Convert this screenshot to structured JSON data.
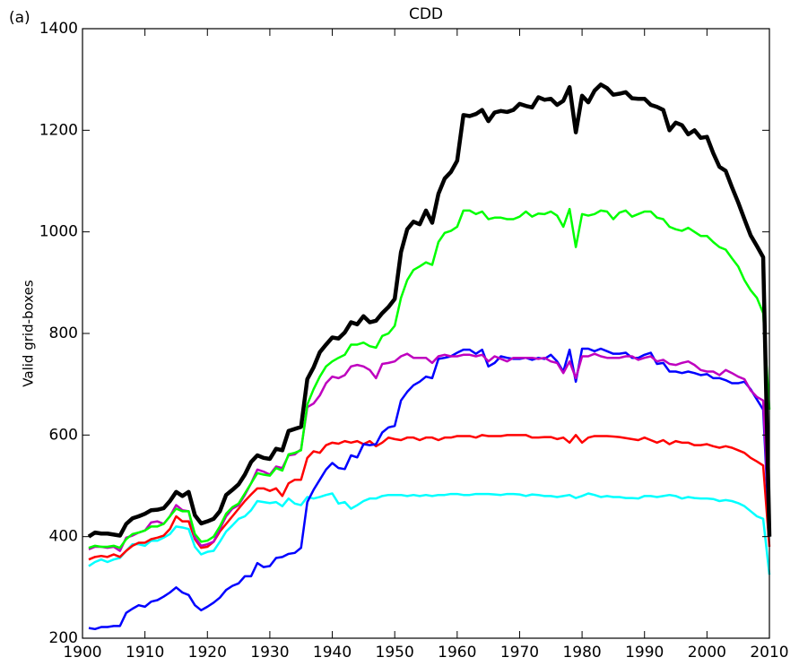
{
  "chart_data": {
    "type": "line",
    "title": "CDD",
    "panel_label": "(a)",
    "y_label": "Valid grid-boxes",
    "x": [
      1901,
      1902,
      1903,
      1904,
      1905,
      1906,
      1907,
      1908,
      1909,
      1910,
      1911,
      1912,
      1913,
      1914,
      1915,
      1916,
      1917,
      1918,
      1919,
      1920,
      1921,
      1922,
      1923,
      1924,
      1925,
      1926,
      1927,
      1928,
      1929,
      1930,
      1931,
      1932,
      1933,
      1934,
      1935,
      1936,
      1937,
      1938,
      1939,
      1940,
      1941,
      1942,
      1943,
      1944,
      1945,
      1946,
      1947,
      1948,
      1949,
      1950,
      1951,
      1952,
      1953,
      1954,
      1955,
      1956,
      1957,
      1958,
      1959,
      1960,
      1961,
      1962,
      1963,
      1964,
      1965,
      1966,
      1967,
      1968,
      1969,
      1970,
      1971,
      1972,
      1973,
      1974,
      1975,
      1976,
      1977,
      1978,
      1979,
      1980,
      1981,
      1982,
      1983,
      1984,
      1985,
      1986,
      1987,
      1988,
      1989,
      1990,
      1991,
      1992,
      1993,
      1994,
      1995,
      1996,
      1997,
      1998,
      1999,
      2000,
      2001,
      2002,
      2003,
      2004,
      2005,
      2006,
      2007,
      2008,
      2009,
      2010
    ],
    "series": [
      {
        "color": "#00ffff",
        "width": 2.5,
        "values": [
          342,
          350,
          355,
          350,
          355,
          358,
          372,
          385,
          385,
          382,
          392,
          392,
          398,
          405,
          420,
          418,
          415,
          380,
          365,
          370,
          372,
          390,
          410,
          422,
          435,
          440,
          452,
          470,
          468,
          466,
          468,
          460,
          475,
          465,
          462,
          478,
          475,
          478,
          482,
          485,
          465,
          468,
          455,
          462,
          470,
          475,
          475,
          480,
          482,
          482,
          482,
          480,
          482,
          480,
          482,
          480,
          482,
          482,
          484,
          484,
          482,
          482,
          484,
          484,
          484,
          483,
          482,
          484,
          484,
          483,
          480,
          483,
          482,
          480,
          480,
          478,
          480,
          482,
          476,
          480,
          485,
          482,
          478,
          480,
          478,
          478,
          476,
          476,
          475,
          480,
          480,
          478,
          480,
          482,
          480,
          475,
          478,
          476,
          475,
          475,
          474,
          470,
          472,
          470,
          466,
          460,
          450,
          440,
          435,
          325
        ]
      },
      {
        "color": "#ff0000",
        "width": 2.5,
        "values": [
          355,
          360,
          362,
          360,
          365,
          360,
          372,
          382,
          388,
          388,
          395,
          398,
          402,
          415,
          440,
          430,
          430,
          395,
          378,
          380,
          390,
          410,
          425,
          440,
          455,
          470,
          483,
          495,
          495,
          490,
          495,
          480,
          505,
          512,
          512,
          555,
          568,
          565,
          580,
          585,
          583,
          588,
          585,
          588,
          582,
          588,
          578,
          585,
          595,
          592,
          590,
          595,
          595,
          590,
          595,
          595,
          590,
          595,
          595,
          598,
          598,
          598,
          595,
          600,
          598,
          598,
          598,
          600,
          600,
          600,
          600,
          595,
          595,
          596,
          596,
          592,
          595,
          585,
          600,
          585,
          595,
          598,
          598,
          598,
          597,
          596,
          594,
          592,
          590,
          595,
          590,
          585,
          590,
          582,
          588,
          585,
          585,
          580,
          580,
          582,
          578,
          575,
          578,
          575,
          570,
          565,
          555,
          548,
          540,
          380
        ]
      },
      {
        "color": "#0000ff",
        "width": 2.5,
        "values": [
          220,
          218,
          222,
          222,
          224,
          224,
          250,
          258,
          265,
          262,
          272,
          275,
          282,
          290,
          300,
          290,
          285,
          265,
          255,
          262,
          270,
          280,
          295,
          303,
          308,
          322,
          322,
          348,
          340,
          342,
          358,
          360,
          366,
          368,
          378,
          468,
          492,
          512,
          532,
          545,
          535,
          533,
          560,
          556,
          582,
          580,
          582,
          605,
          615,
          618,
          668,
          685,
          698,
          705,
          715,
          712,
          750,
          752,
          755,
          762,
          768,
          768,
          760,
          768,
          735,
          742,
          755,
          752,
          750,
          750,
          752,
          748,
          752,
          750,
          758,
          745,
          725,
          768,
          705,
          770,
          770,
          765,
          770,
          765,
          760,
          760,
          762,
          752,
          752,
          758,
          762,
          740,
          742,
          725,
          725,
          722,
          725,
          722,
          718,
          720,
          712,
          712,
          708,
          702,
          702,
          705,
          690,
          670,
          650,
          400
        ]
      },
      {
        "color": "#bf00bf",
        "width": 2.5,
        "values": [
          375,
          380,
          380,
          378,
          380,
          372,
          398,
          402,
          408,
          412,
          428,
          430,
          425,
          440,
          462,
          452,
          450,
          398,
          382,
          385,
          390,
          415,
          440,
          455,
          462,
          482,
          505,
          532,
          528,
          522,
          538,
          535,
          560,
          562,
          572,
          655,
          662,
          678,
          702,
          715,
          712,
          718,
          735,
          738,
          735,
          728,
          712,
          740,
          742,
          745,
          755,
          760,
          752,
          752,
          752,
          742,
          755,
          758,
          755,
          755,
          758,
          758,
          755,
          758,
          745,
          755,
          750,
          745,
          752,
          752,
          752,
          752,
          750,
          752,
          745,
          742,
          722,
          745,
          712,
          755,
          755,
          760,
          755,
          752,
          752,
          752,
          755,
          755,
          748,
          752,
          755,
          745,
          748,
          740,
          738,
          742,
          745,
          738,
          728,
          725,
          725,
          718,
          728,
          722,
          715,
          710,
          688,
          675,
          668,
          420
        ]
      },
      {
        "color": "#00ff00",
        "width": 2.5,
        "values": [
          378,
          382,
          380,
          380,
          382,
          378,
          395,
          405,
          408,
          412,
          420,
          420,
          425,
          440,
          455,
          450,
          450,
          405,
          390,
          392,
          400,
          420,
          445,
          458,
          465,
          485,
          505,
          525,
          522,
          520,
          535,
          530,
          562,
          565,
          570,
          660,
          690,
          715,
          735,
          745,
          752,
          758,
          778,
          778,
          782,
          775,
          772,
          795,
          800,
          815,
          870,
          905,
          925,
          932,
          940,
          935,
          980,
          998,
          1002,
          1010,
          1042,
          1042,
          1035,
          1040,
          1025,
          1028,
          1028,
          1025,
          1025,
          1030,
          1040,
          1030,
          1036,
          1035,
          1040,
          1032,
          1010,
          1045,
          970,
          1035,
          1032,
          1035,
          1042,
          1040,
          1025,
          1038,
          1042,
          1030,
          1035,
          1040,
          1040,
          1028,
          1025,
          1010,
          1005,
          1002,
          1008,
          1000,
          992,
          992,
          980,
          970,
          965,
          948,
          932,
          905,
          885,
          870,
          840,
          650
        ]
      },
      {
        "color": "#000000",
        "width": 4.5,
        "values": [
          400,
          408,
          406,
          406,
          404,
          402,
          425,
          436,
          440,
          445,
          452,
          453,
          456,
          470,
          488,
          480,
          488,
          442,
          426,
          430,
          435,
          450,
          482,
          492,
          503,
          522,
          547,
          560,
          555,
          553,
          573,
          570,
          608,
          612,
          616,
          710,
          733,
          763,
          778,
          792,
          790,
          802,
          822,
          818,
          834,
          822,
          825,
          840,
          852,
          868,
          960,
          1005,
          1020,
          1015,
          1042,
          1018,
          1075,
          1105,
          1118,
          1140,
          1230,
          1228,
          1232,
          1240,
          1218,
          1235,
          1238,
          1236,
          1240,
          1252,
          1248,
          1245,
          1265,
          1260,
          1262,
          1250,
          1258,
          1285,
          1196,
          1268,
          1255,
          1278,
          1290,
          1283,
          1270,
          1272,
          1275,
          1263,
          1262,
          1262,
          1250,
          1246,
          1240,
          1200,
          1215,
          1210,
          1192,
          1200,
          1185,
          1187,
          1155,
          1128,
          1120,
          1088,
          1058,
          1025,
          993,
          972,
          950,
          400
        ]
      }
    ],
    "xlim": [
      1900,
      2010
    ],
    "xticks": [
      1900,
      1910,
      1920,
      1930,
      1940,
      1950,
      1960,
      1970,
      1980,
      1990,
      2000,
      2010
    ],
    "ylim": [
      200,
      1400
    ],
    "yticks": [
      200,
      400,
      600,
      800,
      1000,
      1200,
      1400
    ]
  }
}
